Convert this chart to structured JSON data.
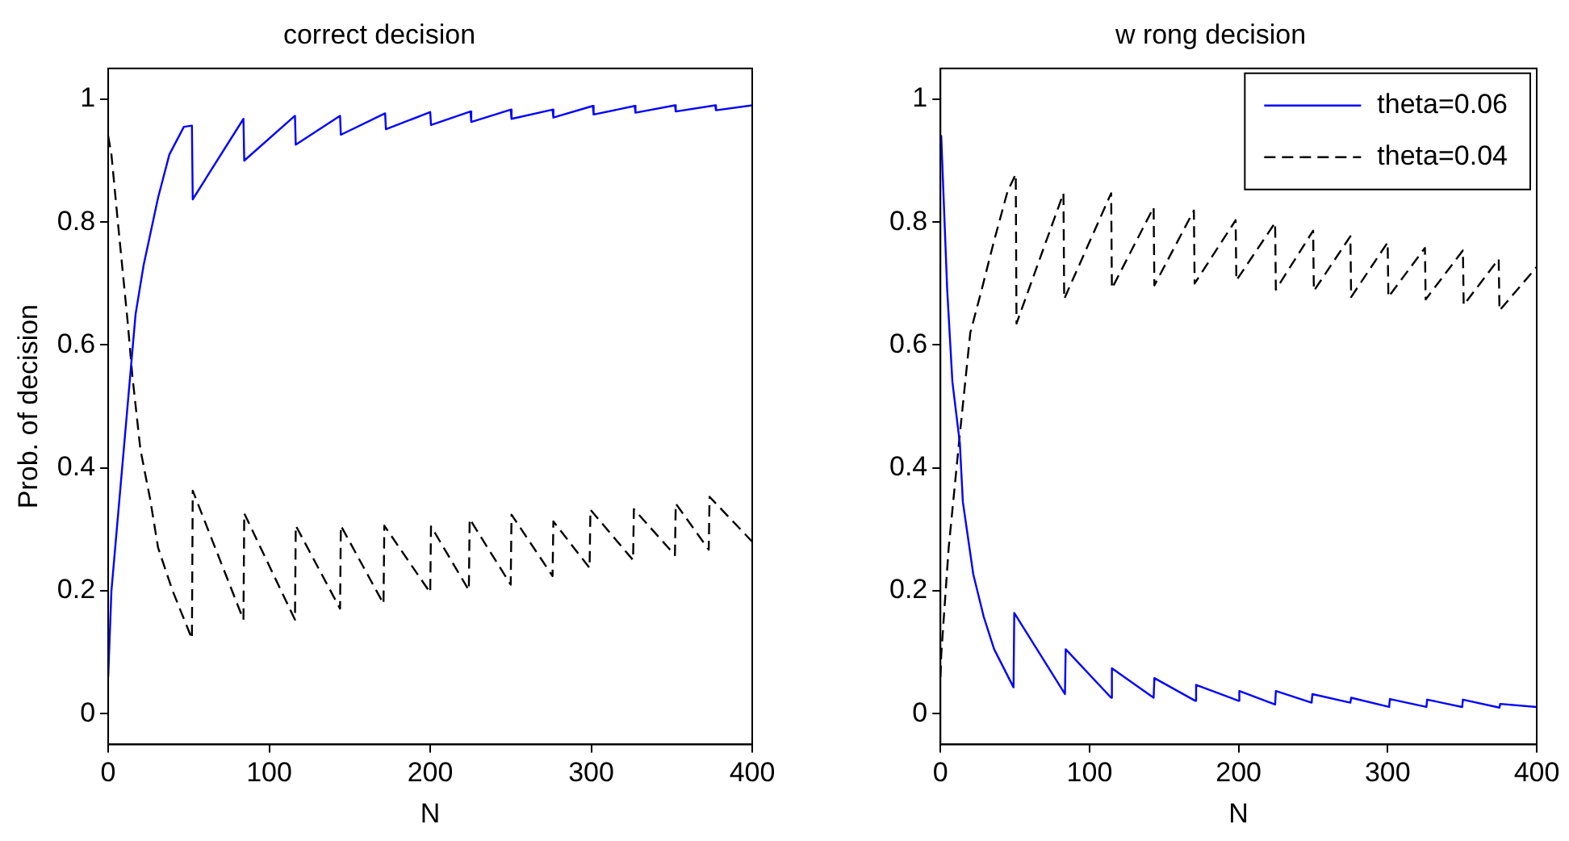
{
  "chart_data": [
    {
      "type": "line",
      "title": "correct decision",
      "xlabel": "N",
      "ylabel": "Prob. of decision",
      "xlim": [
        0,
        400
      ],
      "ylim": [
        -0.05,
        1.05
      ],
      "xticks": [
        0,
        100,
        200,
        300,
        400
      ],
      "yticks": [
        0,
        0.2,
        0.4,
        0.6,
        0.8,
        1
      ],
      "grid": false,
      "legend": false,
      "marker": "none",
      "series": [
        {
          "color": "#0000ff",
          "line_style": "solid",
          "x": [
            0,
            2,
            15,
            17,
            22,
            31,
            38,
            47,
            52,
            52.5,
            84,
            84.5,
            116,
            116.5,
            144,
            144.5,
            172,
            172.5,
            200,
            200.5,
            225,
            225.5,
            250,
            250.5,
            276,
            276.5,
            301,
            301.5,
            327,
            327.5,
            352,
            352.5,
            377,
            377.5,
            400
          ],
          "values": [
            0.06,
            0.2,
            0.59,
            0.65,
            0.73,
            0.84,
            0.91,
            0.955,
            0.957,
            0.837,
            0.968,
            0.9,
            0.973,
            0.926,
            0.973,
            0.942,
            0.977,
            0.951,
            0.979,
            0.958,
            0.98,
            0.963,
            0.983,
            0.968,
            0.983,
            0.97,
            0.989,
            0.975,
            0.989,
            0.978,
            0.99,
            0.98,
            0.99,
            0.982,
            0.99
          ]
        },
        {
          "color": "#000000",
          "line_style": "dashed",
          "x": [
            0,
            2,
            6,
            12,
            15,
            20,
            26,
            31,
            40,
            52,
            52.5,
            84,
            84.5,
            116,
            116.5,
            144,
            144.5,
            171,
            171.5,
            200,
            200.5,
            224,
            224.5,
            250,
            250.5,
            276,
            276.5,
            299,
            299.5,
            326,
            326.5,
            352,
            352.5,
            373,
            373.5,
            400
          ],
          "values": [
            0.94,
            0.91,
            0.8,
            0.64,
            0.55,
            0.43,
            0.35,
            0.27,
            0.2,
            0.122,
            0.363,
            0.153,
            0.326,
            0.153,
            0.306,
            0.171,
            0.306,
            0.179,
            0.306,
            0.197,
            0.305,
            0.201,
            0.317,
            0.21,
            0.324,
            0.224,
            0.313,
            0.237,
            0.332,
            0.25,
            0.333,
            0.258,
            0.342,
            0.267,
            0.353,
            0.28
          ]
        }
      ]
    },
    {
      "type": "line",
      "title": "w rong decision",
      "xlabel": "N",
      "xlim": [
        0,
        400
      ],
      "ylim": [
        -0.05,
        1.05
      ],
      "xticks": [
        0,
        100,
        200,
        300,
        400
      ],
      "yticks": [
        0,
        0.2,
        0.4,
        0.6,
        0.8,
        1
      ],
      "grid": false,
      "legend": "top right",
      "marker": "none",
      "series": [
        {
          "name": "theta=0.06",
          "color": "#0000ff",
          "line_style": "solid",
          "x": [
            0,
            0.5,
            4.5,
            8,
            13,
            15,
            22,
            29,
            36,
            49,
            49.5,
            83.5,
            84,
            114.5,
            115,
            143,
            143.5,
            171,
            171.5,
            200,
            200.5,
            224.5,
            225,
            249,
            249.5,
            275,
            275.5,
            301,
            301.5,
            326,
            326.5,
            350,
            350.5,
            375,
            375.5,
            400
          ],
          "values": [
            0.94,
            0.94,
            0.69,
            0.54,
            0.44,
            0.345,
            0.227,
            0.158,
            0.105,
            0.043,
            0.164,
            0.032,
            0.105,
            0.026,
            0.074,
            0.026,
            0.058,
            0.021,
            0.047,
            0.021,
            0.037,
            0.015,
            0.037,
            0.018,
            0.032,
            0.018,
            0.026,
            0.011,
            0.024,
            0.011,
            0.023,
            0.011,
            0.023,
            0.01,
            0.016,
            0.011
          ]
        },
        {
          "name": "theta=0.04",
          "color": "#000000",
          "line_style": "dashed",
          "x": [
            0,
            0.5,
            5.5,
            13,
            20,
            27,
            36,
            45,
            50.5,
            51,
            82.5,
            83,
            114.5,
            115,
            143,
            143.5,
            170,
            170.5,
            198,
            198.5,
            224.5,
            225,
            250,
            250.5,
            275,
            275.5,
            300,
            300.5,
            325,
            325.5,
            350.5,
            351,
            374.5,
            375,
            400
          ],
          "values": [
            0.06,
            0.096,
            0.27,
            0.455,
            0.62,
            0.684,
            0.77,
            0.85,
            0.878,
            0.635,
            0.847,
            0.675,
            0.847,
            0.692,
            0.824,
            0.697,
            0.819,
            0.7,
            0.803,
            0.705,
            0.799,
            0.69,
            0.786,
            0.688,
            0.777,
            0.678,
            0.767,
            0.678,
            0.758,
            0.674,
            0.754,
            0.665,
            0.74,
            0.656,
            0.727
          ]
        }
      ]
    }
  ]
}
